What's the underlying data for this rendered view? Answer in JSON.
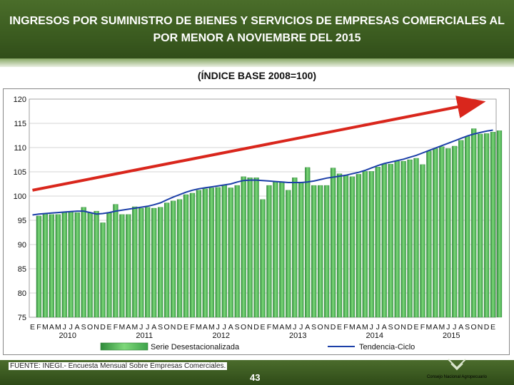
{
  "slide": {
    "title": "INGRESOS POR SUMINISTRO  DE BIENES Y SERVICIOS DE EMPRESAS COMERCIALES AL POR MENOR A NOVIEMBRE DEL 2015",
    "subtitle": "(ÍNDICE BASE 2008=100)",
    "source": "FUENTE: INEGI.- Encuesta Mensual Sobre Empresas Comerciales.",
    "page_number": "43",
    "logo_text": "Consejo Nacional Agropecuario"
  },
  "colors": {
    "bar": "#4caf50",
    "trend": "#1c3fa8",
    "arrow": "#d9261c",
    "header": "#3a5a1f"
  },
  "chart_data": {
    "type": "bar",
    "title": "",
    "ylim": [
      75,
      120
    ],
    "yticks": [
      120,
      115,
      110,
      105,
      100,
      95,
      90,
      85,
      80,
      75
    ],
    "month_letters": [
      "E",
      "F",
      "M",
      "A",
      "M",
      "J",
      "J",
      "A",
      "S",
      "O",
      "N",
      "D"
    ],
    "years": [
      "2010",
      "2011",
      "2012",
      "2013",
      "2014",
      "2015"
    ],
    "legend": [
      "Serie Desestacionalizada",
      "Tendencia-Ciclo"
    ],
    "series": [
      {
        "name": "Serie Desestacionalizada",
        "values": [
          95.9,
          96.3,
          96.2,
          96.2,
          96.6,
          96.7,
          96.6,
          97.7,
          96.6,
          96.9,
          94.5,
          96.6,
          98.3,
          96.2,
          96.2,
          97.8,
          97.5,
          97.7,
          97.5,
          97.7,
          98.6,
          99.0,
          99.3,
          100.3,
          100.6,
          101.2,
          101.5,
          101.7,
          101.8,
          102.3,
          101.7,
          102.2,
          104.0,
          103.8,
          103.8,
          99.3,
          102.2,
          102.9,
          103.0,
          101.2,
          103.8,
          102.8,
          105.9,
          102.2,
          102.2,
          102.2,
          105.8,
          104.6,
          104.2,
          104.0,
          104.5,
          105.1,
          105.1,
          106.0,
          106.6,
          106.6,
          107.2,
          107.2,
          107.5,
          107.8,
          106.5,
          109.3,
          109.8,
          110.2,
          109.8,
          110.3,
          111.5,
          112.3,
          113.9,
          112.8,
          112.9,
          113.2,
          113.5
        ]
      },
      {
        "name": "Tendencia-Ciclo",
        "values": [
          96.1,
          96.3,
          96.4,
          96.5,
          96.6,
          96.7,
          96.8,
          96.9,
          96.9,
          96.6,
          96.3,
          96.4,
          96.6,
          96.9,
          97.1,
          97.3,
          97.5,
          97.7,
          97.9,
          98.2,
          98.6,
          99.2,
          99.8,
          100.3,
          100.8,
          101.2,
          101.5,
          101.7,
          101.9,
          102.1,
          102.3,
          102.5,
          102.9,
          103.2,
          103.3,
          103.3,
          103.2,
          103.1,
          103.0,
          102.9,
          102.8,
          102.8,
          102.8,
          102.9,
          103.1,
          103.4,
          103.7,
          103.9,
          104.1,
          104.3,
          104.6,
          104.9,
          105.3,
          105.8,
          106.3,
          106.7,
          107.0,
          107.3,
          107.6,
          108.0,
          108.4,
          108.9,
          109.4,
          109.9,
          110.4,
          110.9,
          111.4,
          111.9,
          112.4,
          112.8,
          113.1,
          113.4,
          113.6
        ]
      }
    ],
    "arrow": {
      "from_value": 101.2,
      "to_value": 119.3
    }
  }
}
